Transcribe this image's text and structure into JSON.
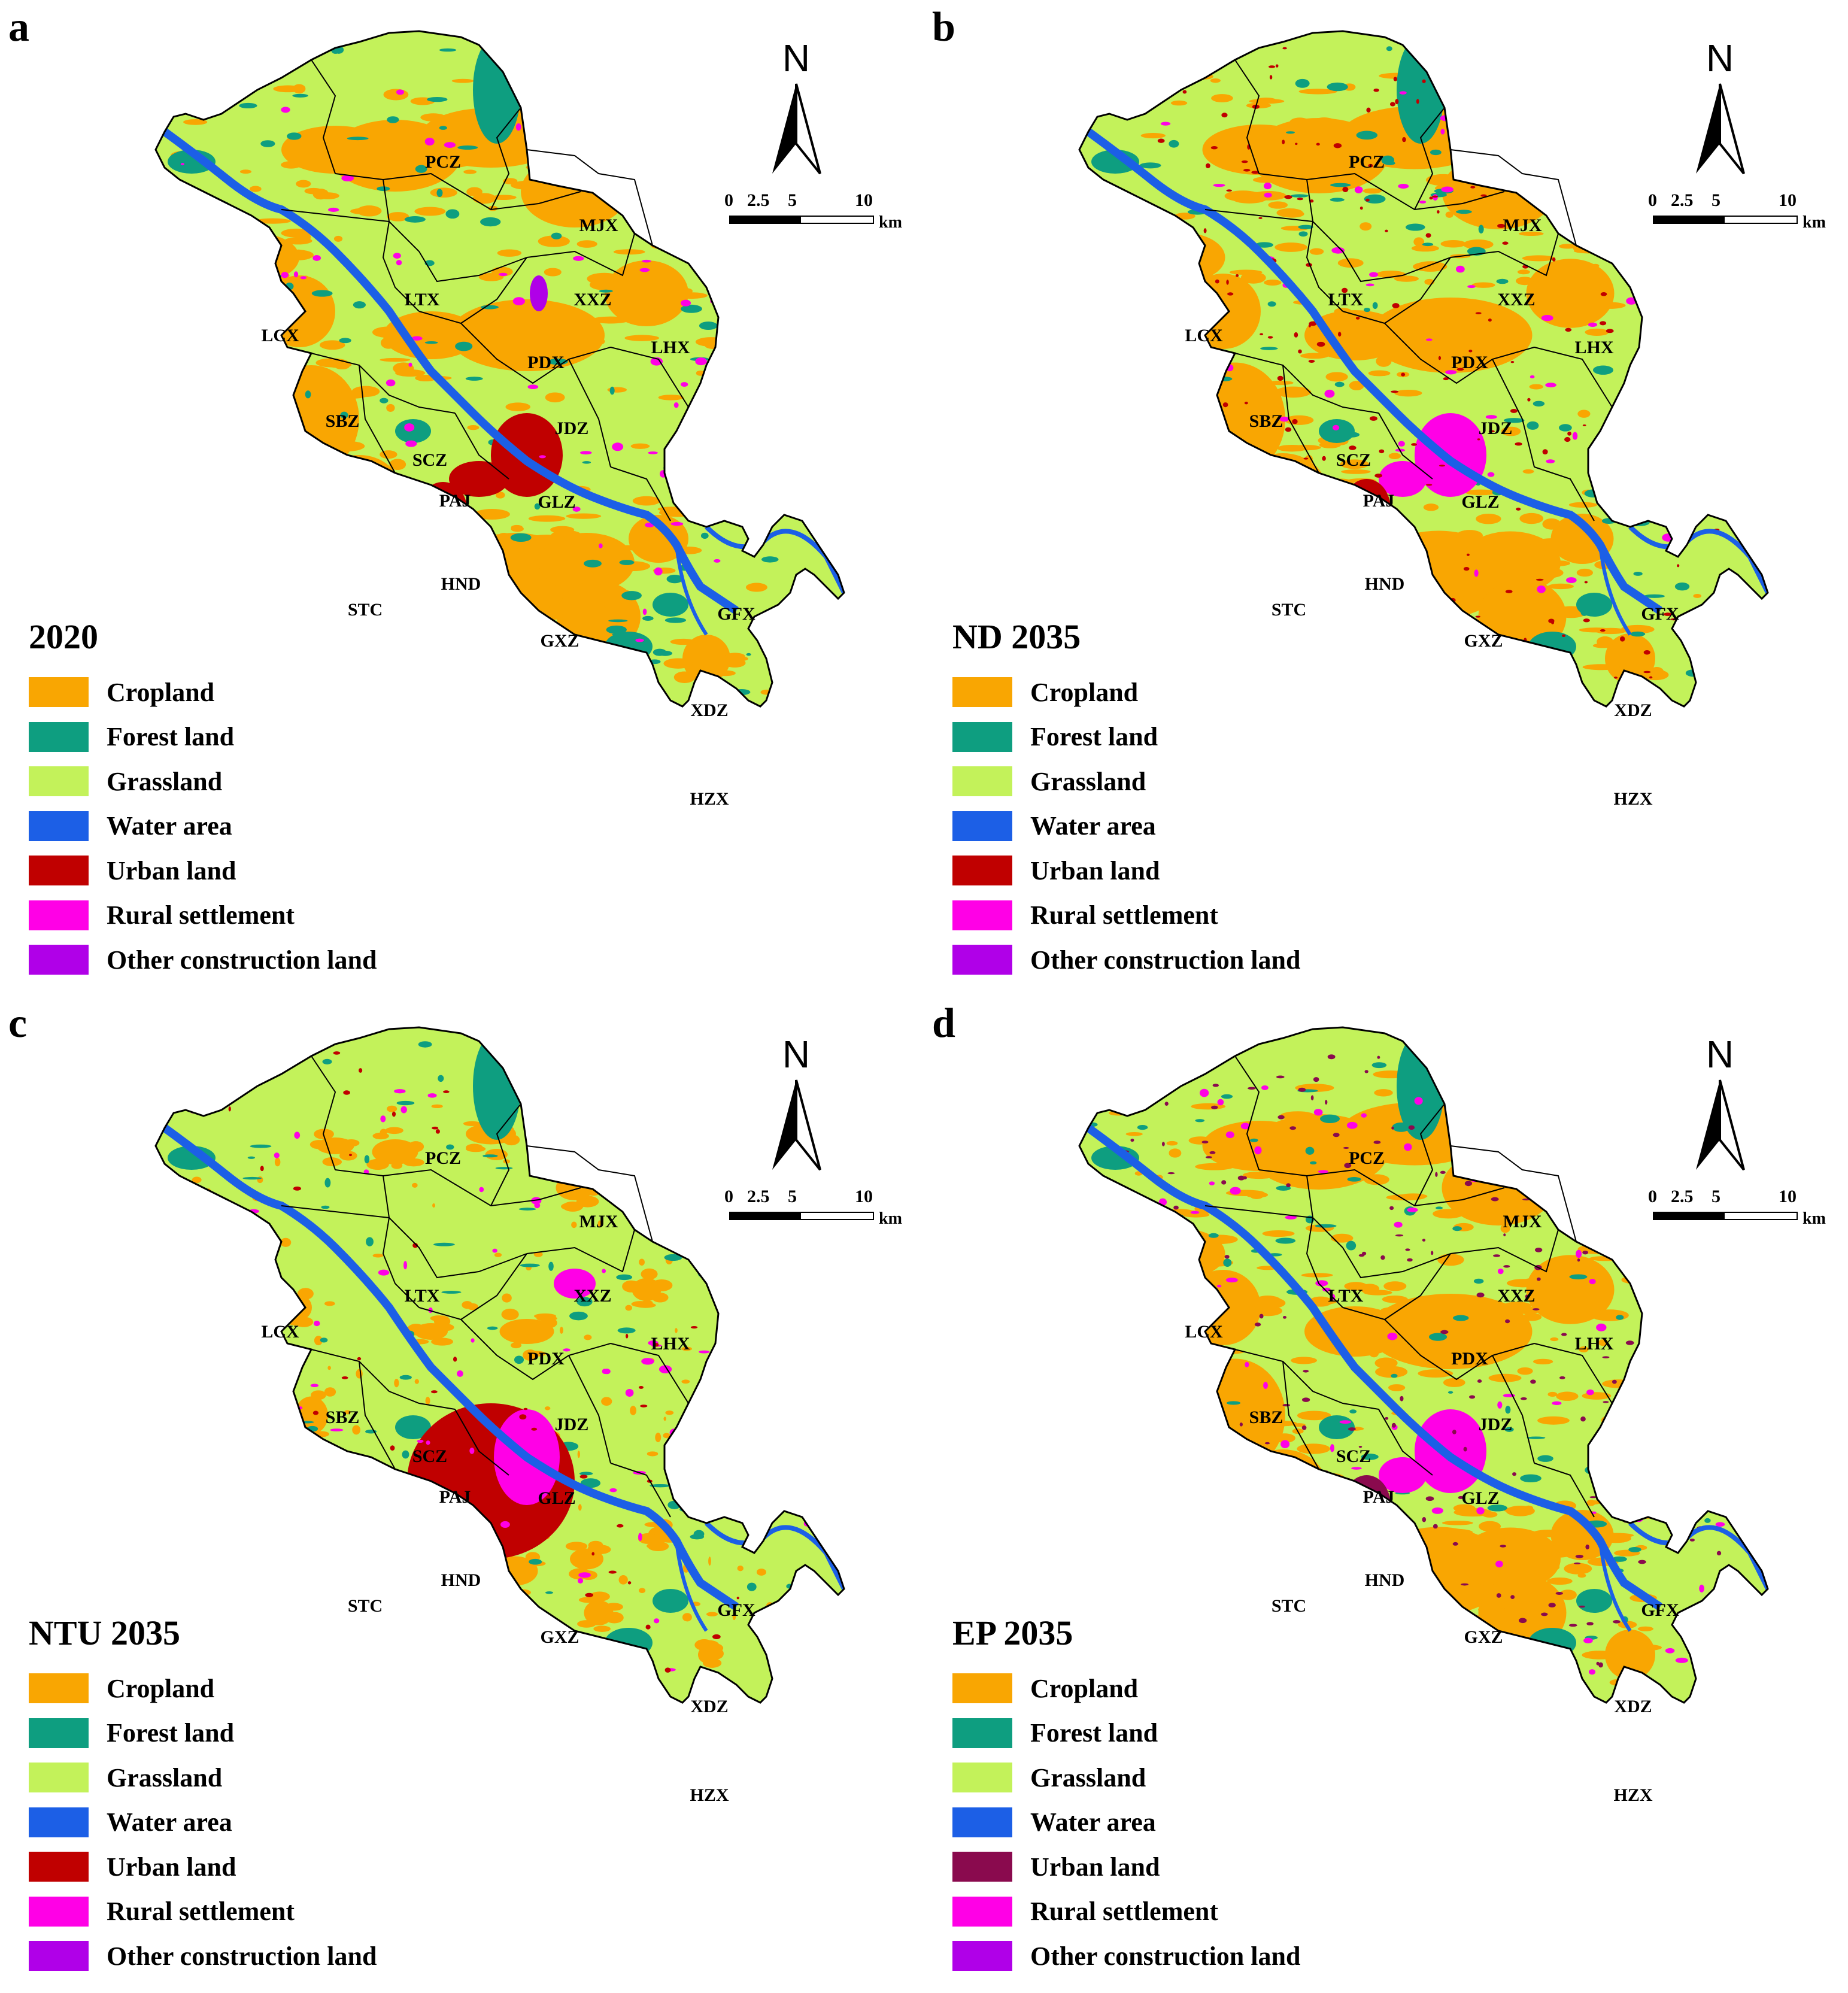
{
  "panels": [
    {
      "id": "a",
      "title": "2020",
      "scenario": "2020"
    },
    {
      "id": "b",
      "title": "ND 2035",
      "scenario": "ND"
    },
    {
      "id": "c",
      "title": "NTU 2035",
      "scenario": "NTU"
    },
    {
      "id": "d",
      "title": "EP 2035",
      "scenario": "EP"
    }
  ],
  "legend": [
    {
      "label": "Cropland",
      "color": "#F9A602"
    },
    {
      "label": "Forest land",
      "color": "#0E9E80"
    },
    {
      "label": "Grassland",
      "color": "#C3F25A"
    },
    {
      "label": "Water area",
      "color": "#1C5FE6"
    },
    {
      "label": "Urban land",
      "color": "#C00000"
    },
    {
      "label": "Rural settlement",
      "color": "#FF00E6"
    },
    {
      "label": "Other construction land",
      "color": "#B000E8"
    }
  ],
  "legend_d_urban_color": "#8A0A4E",
  "north_label": "N",
  "scale": {
    "ticks": [
      "0",
      "2.5",
      "5",
      "10"
    ],
    "unit": "km"
  },
  "towns": [
    "PCZ",
    "MJX",
    "LTX",
    "XXZ",
    "LCX",
    "LHX",
    "PDX",
    "SBZ",
    "JDZ",
    "SCZ",
    "PAJ",
    "GLZ",
    "HND",
    "STC",
    "GFX",
    "GXZ",
    "XDZ",
    "HZX"
  ]
}
